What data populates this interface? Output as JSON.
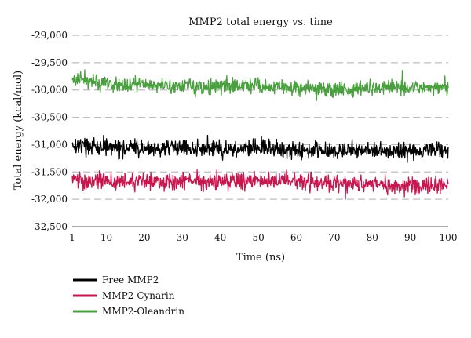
{
  "chart_data": {
    "type": "line",
    "title": "MMP2 total energy vs. time",
    "xlabel": "Time (ns)",
    "ylabel": "Total energy (kcal/mol)",
    "xlim": [
      1,
      100
    ],
    "ylim": [
      -32500,
      -29000
    ],
    "x_ticks": [
      1,
      10,
      20,
      30,
      40,
      50,
      60,
      70,
      80,
      90,
      100
    ],
    "x_tick_labels": [
      "1",
      "10",
      "20",
      "30",
      "40",
      "50",
      "60",
      "70",
      "80",
      "90",
      "100"
    ],
    "y_ticks": [
      -29000,
      -29500,
      -30000,
      -30500,
      -31000,
      -31500,
      -32000,
      -32500
    ],
    "y_tick_labels": [
      "-29,000",
      "-29,500",
      "-30,000",
      "-30,500",
      "-31,000",
      "-31,500",
      "-32,000",
      "-32,500"
    ],
    "grid": "horizontal dashed",
    "legend_position": "bottom-left",
    "series": [
      {
        "name": "Free MMP2",
        "color": "#000000",
        "x": [
          1,
          5,
          10,
          15,
          20,
          25,
          30,
          35,
          40,
          45,
          50,
          55,
          60,
          65,
          70,
          75,
          80,
          85,
          90,
          95,
          100
        ],
        "values": [
          -31000,
          -31030,
          -31060,
          -31070,
          -31080,
          -31070,
          -31060,
          -31070,
          -31090,
          -31080,
          -31060,
          -31080,
          -31100,
          -31090,
          -31110,
          -31100,
          -31120,
          -31110,
          -31120,
          -31110,
          -31100
        ]
      },
      {
        "name": "MMP2-Cynarin",
        "color": "#c8174f",
        "x": [
          1,
          5,
          10,
          15,
          20,
          25,
          30,
          35,
          40,
          45,
          50,
          55,
          60,
          65,
          70,
          75,
          80,
          85,
          90,
          95,
          100
        ],
        "values": [
          -31630,
          -31660,
          -31650,
          -31680,
          -31660,
          -31660,
          -31650,
          -31660,
          -31670,
          -31680,
          -31660,
          -31670,
          -31680,
          -31700,
          -31710,
          -31720,
          -31730,
          -31740,
          -31750,
          -31740,
          -31730
        ]
      },
      {
        "name": "MMP2-Oleandrin",
        "color": "#4aa03f",
        "x": [
          1,
          5,
          10,
          15,
          20,
          25,
          30,
          35,
          40,
          45,
          50,
          55,
          60,
          65,
          70,
          75,
          80,
          85,
          90,
          95,
          100
        ],
        "values": [
          -29780,
          -29830,
          -29880,
          -29900,
          -29910,
          -29920,
          -29920,
          -29930,
          -29940,
          -29920,
          -29930,
          -29950,
          -29960,
          -29980,
          -30000,
          -29980,
          -29960,
          -29950,
          -29960,
          -29950,
          -29940
        ]
      }
    ],
    "noise_amplitude": [
      170,
      170,
      150
    ]
  }
}
